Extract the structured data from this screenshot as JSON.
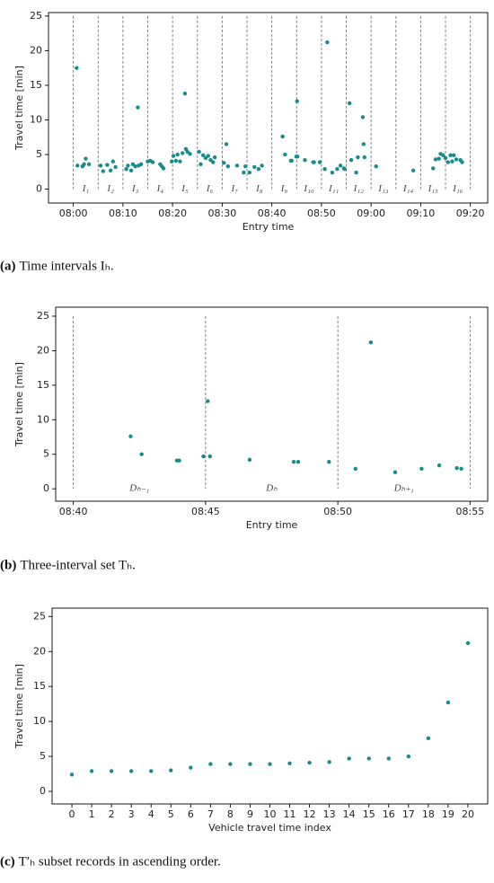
{
  "chart_data": [
    {
      "type": "scatter",
      "xlabel": "Entry time",
      "ylabel": "Travel time [min]",
      "color": "#168c8c",
      "caption_label": "(a)",
      "caption": "Time intervals Iₕ.",
      "xlim": [
        "07:55",
        "09:23:30"
      ],
      "xticks": [
        "08:00",
        "08:10",
        "08:20",
        "08:30",
        "08:40",
        "08:50",
        "09:00",
        "09:10",
        "09:20"
      ],
      "ylim": [
        -2,
        25.5
      ],
      "yticks": [
        0,
        5,
        10,
        15,
        20,
        25
      ],
      "boundaries": [
        "08:00",
        "08:05",
        "08:10",
        "08:15",
        "08:20",
        "08:25",
        "08:30",
        "08:35",
        "08:40",
        "08:45",
        "08:50",
        "08:55",
        "09:00",
        "09:05",
        "09:10",
        "09:15",
        "09:20"
      ],
      "interval_labels": [
        "I₁",
        "I₂",
        "I₃",
        "I₄",
        "I₅",
        "I₆",
        "I₇",
        "I₈",
        "I₉",
        "I₁₀",
        "I₁₁",
        "I₁₂",
        "I₁₃",
        "I₁₄",
        "I₁₅",
        "I₁₆"
      ],
      "x": [
        "08:00:40",
        "08:00:50",
        "08:01:50",
        "08:02:10",
        "08:02:30",
        "08:03:10",
        "08:05:30",
        "08:06:00",
        "08:06:50",
        "08:07:30",
        "08:08:00",
        "08:08:30",
        "08:10:40",
        "08:11:00",
        "08:11:40",
        "08:12:00",
        "08:12:30",
        "08:13:00",
        "08:13:10",
        "08:13:40",
        "08:15:00",
        "08:15:30",
        "08:16:00",
        "08:17:30",
        "08:17:50",
        "08:18:10",
        "08:19:50",
        "08:20:10",
        "08:20:40",
        "08:21:00",
        "08:21:30",
        "08:22:00",
        "08:22:30",
        "08:22:40",
        "08:23:00",
        "08:23:30",
        "08:25:20",
        "08:25:40",
        "08:26:10",
        "08:26:40",
        "08:27:10",
        "08:27:40",
        "08:28:10",
        "08:28:30",
        "08:30:20",
        "08:30:50",
        "08:31:10",
        "08:33:00",
        "08:34:20",
        "08:34:40",
        "08:35:30",
        "08:36:30",
        "08:37:20",
        "08:38:00",
        "08:42:10",
        "08:42:40",
        "08:43:50",
        "08:44:00",
        "08:44:55",
        "08:45:05",
        "08:45:10",
        "08:46:40",
        "08:48:20",
        "08:48:30",
        "08:49:40",
        "08:50:40",
        "08:51:10",
        "08:52:10",
        "08:53:10",
        "08:53:50",
        "08:54:30",
        "08:54:40",
        "08:55:40",
        "08:56:00",
        "08:57:00",
        "08:57:20",
        "08:58:20",
        "08:58:30",
        "08:58:40",
        "09:01:00",
        "09:08:30",
        "09:12:30",
        "09:13:00",
        "09:13:40",
        "09:14:00",
        "09:14:30",
        "09:15:00",
        "09:15:30",
        "09:16:00",
        "09:16:20",
        "09:16:40",
        "09:17:10",
        "09:18:00",
        "09:18:20"
      ],
      "values": [
        17.5,
        3.4,
        3.3,
        3.6,
        4.4,
        3.6,
        3.4,
        2.6,
        3.5,
        2.7,
        4.0,
        3.2,
        2.9,
        3.4,
        2.7,
        3.6,
        3.3,
        11.8,
        3.4,
        3.6,
        4.0,
        4.1,
        3.9,
        3.6,
        3.3,
        3.0,
        4.0,
        4.8,
        4.1,
        5.0,
        4.0,
        5.2,
        13.8,
        5.8,
        5.4,
        5.1,
        5.4,
        3.6,
        4.9,
        4.5,
        4.8,
        4.2,
        3.9,
        4.6,
        3.8,
        6.5,
        3.3,
        3.4,
        2.4,
        3.3,
        2.4,
        3.2,
        2.9,
        3.4,
        7.6,
        5.0,
        4.1,
        4.1,
        4.7,
        12.7,
        4.7,
        4.2,
        3.9,
        3.9,
        3.9,
        2.9,
        21.2,
        2.4,
        2.9,
        3.4,
        3.0,
        2.9,
        12.4,
        4.2,
        2.4,
        4.6,
        10.4,
        6.5,
        4.6,
        3.3,
        2.7,
        3.0,
        4.3,
        4.4,
        5.1,
        4.9,
        4.5,
        3.9,
        4.9,
        4.0,
        4.9,
        4.3,
        4.2,
        3.9
      ]
    },
    {
      "type": "scatter",
      "xlabel": "Entry time",
      "ylabel": "Travel time [min]",
      "color": "#168c8c",
      "caption_label": "(b)",
      "caption": "Three-interval set Tₕ.",
      "xlim": [
        "08:39:20",
        "08:55:40"
      ],
      "xticks": [
        "08:40",
        "08:45",
        "08:50",
        "08:55"
      ],
      "ylim": [
        -1.8,
        26.3
      ],
      "yticks": [
        0,
        5,
        10,
        15,
        20,
        25
      ],
      "boundaries": [
        "08:40",
        "08:45",
        "08:50",
        "08:55"
      ],
      "interval_labels": [
        "Dₕ₋₁",
        "Dₕ",
        "Dₕ₊₁"
      ],
      "x": [
        "08:42:10",
        "08:42:35",
        "08:43:55",
        "08:44:00",
        "08:44:55",
        "08:45:05",
        "08:45:10",
        "08:46:40",
        "08:48:20",
        "08:48:30",
        "08:49:40",
        "08:50:40",
        "08:51:15",
        "08:52:10",
        "08:53:10",
        "08:53:50",
        "08:54:30",
        "08:54:40"
      ],
      "values": [
        7.6,
        5.0,
        4.1,
        4.1,
        4.7,
        12.7,
        4.7,
        4.2,
        3.9,
        3.9,
        3.9,
        2.9,
        21.2,
        2.4,
        2.9,
        3.4,
        3.0,
        2.9
      ]
    },
    {
      "type": "scatter",
      "xlabel": "Vehicle travel time index",
      "ylabel": "Travel time [min]",
      "color": "#168c8c",
      "caption_label": "(c)",
      "caption": "T′ₕ subset records in ascending order.",
      "xlim": [
        -1,
        21
      ],
      "xticks": [
        0,
        1,
        2,
        3,
        4,
        5,
        6,
        7,
        8,
        9,
        10,
        11,
        12,
        13,
        14,
        15,
        16,
        17,
        18,
        19,
        20
      ],
      "ylim": [
        -1.8,
        26.2
      ],
      "yticks": [
        0,
        5,
        10,
        15,
        20,
        25
      ],
      "x": [
        0,
        1,
        2,
        3,
        4,
        5,
        6,
        7,
        8,
        9,
        10,
        11,
        12,
        13,
        14,
        15,
        16,
        17,
        18,
        19,
        20
      ],
      "values": [
        2.4,
        2.9,
        2.9,
        2.9,
        2.9,
        3.0,
        3.4,
        3.9,
        3.9,
        3.9,
        3.9,
        4.0,
        4.1,
        4.2,
        4.7,
        4.7,
        4.7,
        5.0,
        7.6,
        12.7,
        21.2
      ]
    }
  ]
}
